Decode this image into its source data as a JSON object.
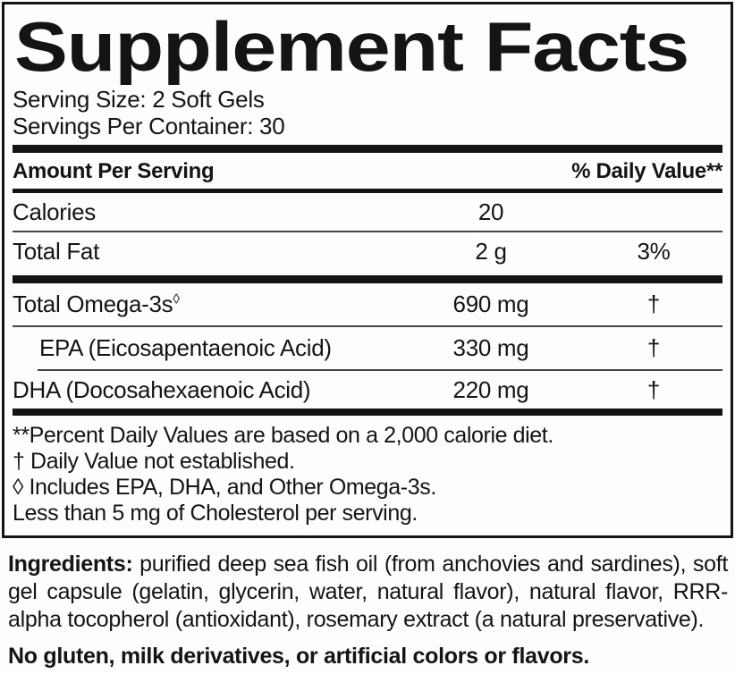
{
  "colors": {
    "ink": "#141414",
    "background": "#fdfdfd"
  },
  "title": "Supplement Facts",
  "serving": {
    "serving_size": "Serving Size: 2 Soft Gels",
    "servings_per_container": "Servings Per Container: 30"
  },
  "header": {
    "amount_per_serving": "Amount Per Serving",
    "daily_value": "% Daily Value**"
  },
  "rows": [
    {
      "label": "Calories",
      "amount": "20",
      "dv": ""
    },
    {
      "label": "Total Fat",
      "amount": "2 g",
      "dv": "3%"
    },
    {
      "label": "Total Omega-3s",
      "label_sup": "◊",
      "amount": "690 mg",
      "dv": "†"
    },
    {
      "label": "EPA (Eicosapentaenoic Acid)",
      "amount": "330 mg",
      "dv": "†"
    },
    {
      "label": "DHA (Docosahexaenoic Acid)",
      "amount": "220 mg",
      "dv": "†"
    }
  ],
  "footnotes": [
    "**Percent Daily Values are based on a 2,000 calorie diet.",
    "† Daily Value not established.",
    "◊ Includes EPA, DHA, and Other Omega-3s.",
    "Less than 5 mg of Cholesterol per serving."
  ],
  "ingredients": {
    "label": "Ingredients:",
    "text": "purified deep sea fish oil (from anchovies and sardines), soft gel capsule (gelatin, glycerin, water, natural flavor), natural flavor, RRR-alpha tocopherol (antioxidant), rosemary extract (a natural preservative)."
  },
  "allergen_statement": "No gluten, milk derivatives, or artificial colors or flavors."
}
